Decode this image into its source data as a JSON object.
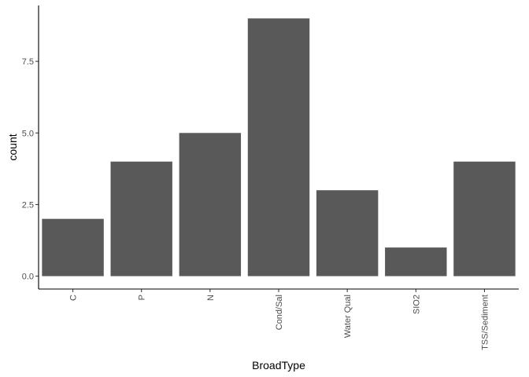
{
  "chart_data": {
    "type": "bar",
    "categories": [
      "C",
      "P",
      "N",
      "Cond/Sal",
      "Water Qual",
      "SIO2",
      "TSS/Sediment"
    ],
    "values": [
      2,
      4,
      5,
      9,
      3,
      1,
      4
    ],
    "xlabel": "BroadType",
    "ylabel": "count",
    "ylim": [
      -0.45,
      9.45
    ],
    "yticks": [
      0,
      2.5,
      5,
      7.5
    ],
    "ytick_labels": [
      "0.0",
      "2.5",
      "5.0",
      "7.5"
    ],
    "x_tick_label_rotation": "vertical",
    "grid": false,
    "legend": "none",
    "bar_color": "#595959",
    "axis_color": "#000000"
  }
}
